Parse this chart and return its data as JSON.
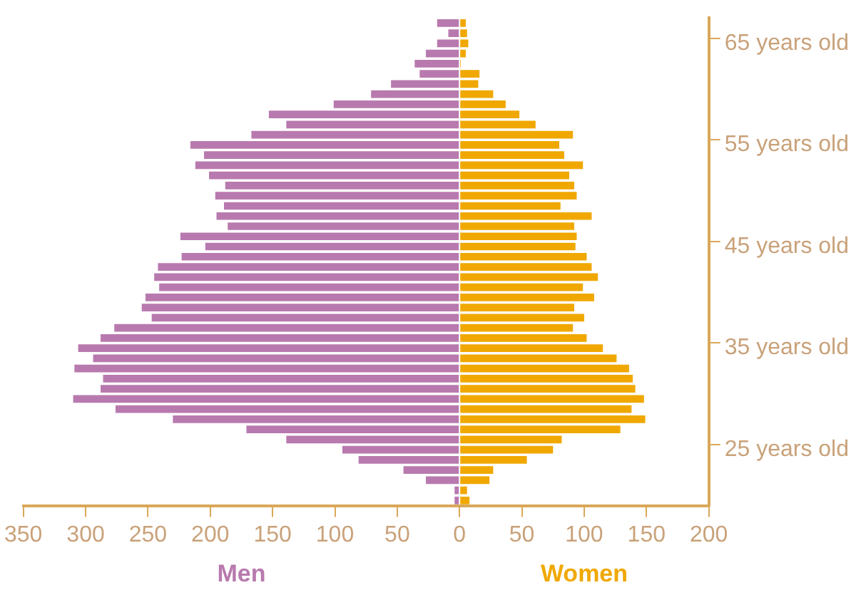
{
  "chart_data": {
    "type": "bar",
    "orientation": "horizontal",
    "stacked": true,
    "categories": [
      null,
      null,
      "65 years old",
      null,
      null,
      null,
      null,
      null,
      null,
      null,
      null,
      null,
      "55 years old",
      null,
      null,
      null,
      null,
      null,
      null,
      null,
      null,
      null,
      "45 years old",
      null,
      null,
      null,
      null,
      null,
      null,
      null,
      null,
      null,
      "35 years old",
      null,
      null,
      null,
      null,
      null,
      null,
      null,
      null,
      null,
      "25 years old",
      null,
      null,
      null,
      null,
      null
    ],
    "series": [
      {
        "name": "Men",
        "color": "#b87aae",
        "values": [
          -18,
          -9,
          -18,
          -27,
          -36,
          -32,
          -55,
          -71,
          -101,
          -153,
          -139,
          -167,
          -216,
          -205,
          -212,
          -201,
          -188,
          -196,
          -189,
          -195,
          -186,
          -224,
          -204,
          -223,
          -242,
          -245,
          -241,
          -252,
          -255,
          -247,
          -277,
          -288,
          -306,
          -294,
          -309,
          -286,
          -288,
          -310,
          -276,
          -230,
          -171,
          -139,
          -94,
          -81,
          -45,
          -27,
          -4,
          -4
        ]
      },
      {
        "name": "Women",
        "color": "#f0a800",
        "values": [
          5,
          6,
          7,
          5,
          1,
          16,
          15,
          27,
          37,
          48,
          61,
          91,
          80,
          84,
          99,
          88,
          92,
          94,
          81,
          106,
          92,
          94,
          93,
          102,
          106,
          111,
          99,
          108,
          92,
          100,
          91,
          102,
          115,
          126,
          136,
          139,
          141,
          148,
          138,
          149,
          129,
          82,
          75,
          54,
          27,
          24,
          6,
          8
        ]
      }
    ],
    "xlim": [
      -350,
      200
    ],
    "xticks": [
      {
        "value": -350,
        "label": "350"
      },
      {
        "value": -300,
        "label": "300"
      },
      {
        "value": -250,
        "label": "250"
      },
      {
        "value": -200,
        "label": "200"
      },
      {
        "value": -150,
        "label": "150"
      },
      {
        "value": -100,
        "label": "100"
      },
      {
        "value": -50,
        "label": "50"
      },
      0,
      50,
      100,
      150,
      200
    ],
    "grid": false
  }
}
